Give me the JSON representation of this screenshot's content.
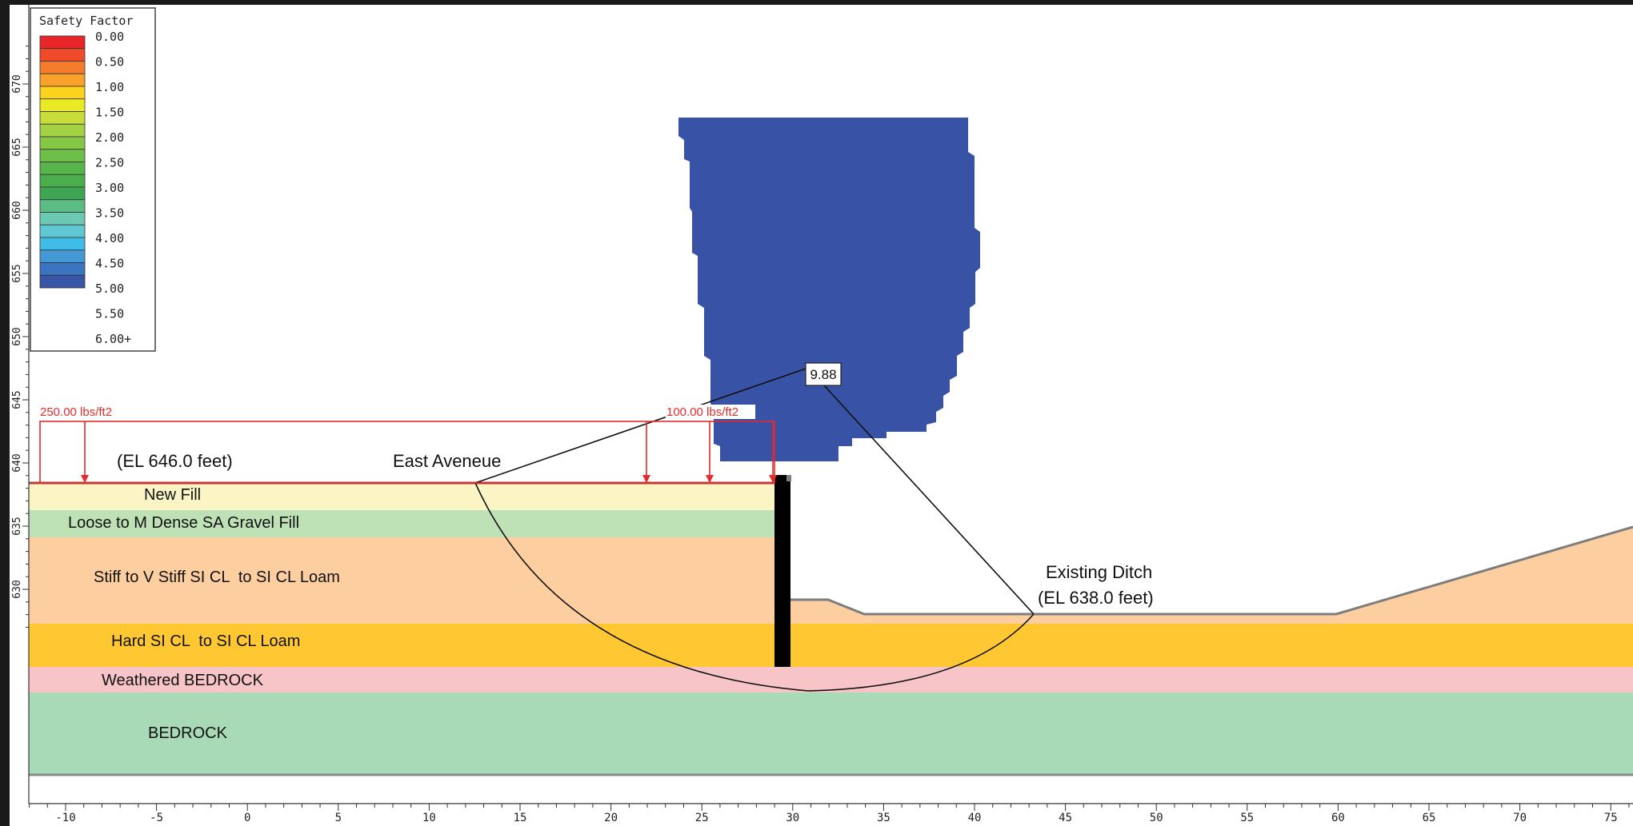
{
  "legend": {
    "title": "Safety Factor",
    "ticks": [
      "0.00",
      "0.50",
      "1.00",
      "1.50",
      "2.00",
      "2.50",
      "3.00",
      "3.50",
      "4.00",
      "4.50",
      "5.00",
      "5.50",
      "6.00+"
    ],
    "colors": [
      "#e8262a",
      "#ef4b2a",
      "#f47c2c",
      "#f9a12a",
      "#fbd31d",
      "#eaea24",
      "#c8dd3a",
      "#a5d144",
      "#86c745",
      "#6dbf47",
      "#58b54b",
      "#4aae4d",
      "#3ea653",
      "#5bbd84",
      "#6ccab4",
      "#5fc8d2",
      "#3fbce7",
      "#4598d6",
      "#3b74c0",
      "#3856a8"
    ]
  },
  "colors": {
    "new_fill": "#fbf5c6",
    "gravel_fill": "#bfe1b6",
    "stiff_clay": "#fdcfa0",
    "hard_clay": "#ffc833",
    "weathered_bedrock": "#f7c4c8",
    "bedrock": "#a8dab8",
    "safety_region": "#3853a6",
    "load_red": "#e32b2b",
    "wall": "#000000"
  },
  "x_axis": {
    "ticks": [
      "-10",
      "-5",
      "0",
      "5",
      "10",
      "15",
      "20",
      "25",
      "30",
      "35",
      "40",
      "45",
      "50",
      "55",
      "60",
      "65",
      "70",
      "75"
    ]
  },
  "y_axis": {
    "ticks": [
      "670",
      "665",
      "660",
      "655",
      "650",
      "645",
      "640",
      "635",
      "630"
    ]
  },
  "loads": [
    {
      "label": "250.00 lbs/ft2"
    },
    {
      "label": "100.00 lbs/ft2"
    }
  ],
  "annotations": {
    "el_646": "(EL 646.0 feet)",
    "east_avenue": "East Aveneue",
    "existing_ditch": "Existing Ditch",
    "el_638": "(EL 638.0 feet)",
    "safety_factor_value": "9.88"
  },
  "layers": [
    {
      "label": "New Fill"
    },
    {
      "label": "Loose to M Dense SA Gravel Fill"
    },
    {
      "label": "Stiff to V Stiff SI CL  to SI CL Loam"
    },
    {
      "label": "Hard SI CL  to SI CL Loam"
    },
    {
      "label": "Weathered BEDROCK"
    },
    {
      "label": "BEDROCK"
    }
  ]
}
